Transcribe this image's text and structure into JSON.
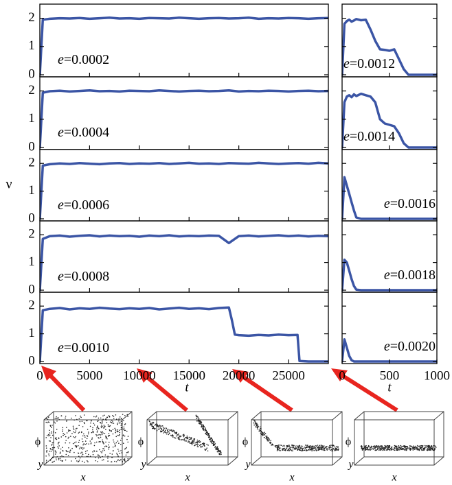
{
  "ylabel": "ν",
  "chart_data": [
    {
      "type": "line",
      "label_symbol": "e",
      "label_text": "=0.0002",
      "label_corner": "lower left",
      "color": "#3b55a5",
      "xlim": [
        0,
        29000
      ],
      "xticks": [
        0,
        5000,
        10000,
        15000,
        20000,
        25000
      ],
      "xtick_labels": false,
      "ylim": [
        0,
        2.5
      ],
      "yticks": [
        0,
        1,
        2
      ],
      "ytick_labels": true,
      "x": [
        0,
        300,
        1000,
        2000,
        3000,
        4000,
        5000,
        6000,
        7000,
        8000,
        9000,
        10000,
        11000,
        12000,
        13000,
        14000,
        15000,
        16000,
        17000,
        18000,
        19000,
        20000,
        21000,
        22000,
        23000,
        24000,
        25000,
        26000,
        27000,
        28000,
        29000
      ],
      "values": [
        0,
        1.95,
        1.98,
        2.0,
        1.99,
        2.01,
        1.98,
        2.0,
        2.02,
        1.99,
        2.0,
        1.98,
        2.01,
        2.0,
        1.99,
        2.02,
        2.0,
        1.98,
        2.0,
        2.01,
        1.99,
        2.0,
        2.02,
        1.98,
        2.0,
        1.99,
        2.01,
        2.0,
        1.98,
        2.0,
        2.01
      ]
    },
    {
      "type": "line",
      "label_symbol": "e",
      "label_text": "=0.0004",
      "label_corner": "lower left",
      "color": "#3b55a5",
      "xlim": [
        0,
        29000
      ],
      "xticks": [
        0,
        5000,
        10000,
        15000,
        20000,
        25000
      ],
      "xtick_labels": false,
      "ylim": [
        0,
        2.5
      ],
      "yticks": [
        0,
        1,
        2
      ],
      "ytick_labels": true,
      "x": [
        0,
        300,
        1000,
        2000,
        3000,
        4000,
        5000,
        6000,
        7000,
        8000,
        9000,
        10000,
        11000,
        12000,
        13000,
        14000,
        15000,
        16000,
        17000,
        18000,
        19000,
        20000,
        21000,
        22000,
        23000,
        24000,
        25000,
        26000,
        27000,
        28000,
        29000
      ],
      "values": [
        0,
        1.94,
        1.99,
        2.01,
        1.98,
        2.0,
        2.02,
        1.99,
        2.0,
        1.98,
        2.01,
        2.0,
        1.99,
        2.02,
        2.0,
        1.98,
        2.0,
        2.01,
        1.99,
        2.0,
        2.02,
        1.98,
        2.0,
        1.99,
        2.01,
        2.0,
        1.98,
        2.0,
        2.01,
        1.99,
        2.0
      ]
    },
    {
      "type": "line",
      "label_symbol": "e",
      "label_text": "=0.0006",
      "label_corner": "lower left",
      "color": "#3b55a5",
      "xlim": [
        0,
        29000
      ],
      "xticks": [
        0,
        5000,
        10000,
        15000,
        20000,
        25000
      ],
      "xtick_labels": false,
      "ylim": [
        0,
        2.5
      ],
      "yticks": [
        0,
        1,
        2
      ],
      "ytick_labels": true,
      "x": [
        0,
        300,
        1000,
        2000,
        3000,
        4000,
        5000,
        6000,
        7000,
        8000,
        9000,
        10000,
        11000,
        12000,
        13000,
        14000,
        15000,
        16000,
        17000,
        18000,
        19000,
        20000,
        21000,
        22000,
        23000,
        24000,
        25000,
        26000,
        27000,
        28000,
        29000
      ],
      "values": [
        0,
        1.92,
        1.97,
        2.0,
        1.98,
        2.01,
        1.99,
        1.97,
        2.0,
        2.01,
        1.98,
        2.0,
        1.99,
        2.01,
        1.98,
        2.0,
        2.02,
        1.99,
        2.0,
        1.98,
        2.01,
        2.0,
        1.99,
        2.02,
        2.0,
        1.98,
        2.0,
        2.01,
        1.99,
        2.02,
        2.0
      ]
    },
    {
      "type": "line",
      "label_symbol": "e",
      "label_text": "=0.0008",
      "label_corner": "lower left",
      "color": "#3b55a5",
      "xlim": [
        0,
        29000
      ],
      "xticks": [
        0,
        5000,
        10000,
        15000,
        20000,
        25000
      ],
      "xtick_labels": false,
      "ylim": [
        0,
        2.5
      ],
      "yticks": [
        0,
        1,
        2
      ],
      "ytick_labels": true,
      "x": [
        0,
        300,
        1000,
        2000,
        3000,
        4000,
        5000,
        6000,
        7000,
        8000,
        9000,
        10000,
        11000,
        12000,
        13000,
        14000,
        15000,
        16000,
        17000,
        18000,
        19000,
        20000,
        21000,
        22000,
        23000,
        24000,
        25000,
        26000,
        27000,
        28000,
        29000
      ],
      "values": [
        0,
        1.85,
        1.95,
        1.97,
        1.93,
        1.96,
        1.98,
        1.94,
        1.97,
        1.95,
        1.96,
        1.93,
        1.97,
        1.95,
        1.98,
        1.94,
        1.96,
        1.95,
        1.97,
        1.96,
        1.7,
        1.95,
        1.97,
        1.94,
        1.96,
        1.98,
        1.95,
        1.97,
        1.94,
        1.96,
        1.95
      ]
    },
    {
      "type": "line",
      "label_symbol": "e",
      "label_text": "=0.0010",
      "label_corner": "lower left",
      "color": "#3b55a5",
      "xlabel": "t",
      "xlim": [
        0,
        29000
      ],
      "xticks": [
        0,
        5000,
        10000,
        15000,
        20000,
        25000
      ],
      "xtick_labels": true,
      "ylim": [
        0,
        2.5
      ],
      "yticks": [
        0,
        1,
        2
      ],
      "ytick_labels": true,
      "x": [
        0,
        300,
        1000,
        2000,
        3000,
        4000,
        5000,
        6000,
        7000,
        8000,
        9000,
        10000,
        11000,
        12000,
        13000,
        14000,
        15000,
        16000,
        17000,
        18000,
        19000,
        19300,
        19600,
        20000,
        21000,
        22000,
        23000,
        24000,
        25000,
        25900,
        26100,
        27000,
        28000,
        29000
      ],
      "values": [
        0,
        1.85,
        1.9,
        1.93,
        1.88,
        1.92,
        1.9,
        1.94,
        1.91,
        1.89,
        1.92,
        1.9,
        1.93,
        1.88,
        1.91,
        1.94,
        1.9,
        1.92,
        1.89,
        1.93,
        1.95,
        1.5,
        0.97,
        0.95,
        0.93,
        0.96,
        0.94,
        0.97,
        0.95,
        0.96,
        0.02,
        0,
        0,
        0
      ]
    },
    {
      "type": "line",
      "label_symbol": "e",
      "label_text": "=0.0012",
      "label_corner": "lower left",
      "color": "#3b55a5",
      "xlim": [
        0,
        1000
      ],
      "xticks": [
        0,
        500,
        1000
      ],
      "xtick_labels": false,
      "ylim": [
        0,
        2.5
      ],
      "yticks": [
        0,
        1,
        2
      ],
      "ytick_labels": false,
      "x": [
        0,
        25,
        50,
        75,
        100,
        125,
        150,
        200,
        250,
        300,
        350,
        400,
        450,
        500,
        550,
        600,
        650,
        700,
        750,
        800,
        850,
        900,
        950,
        1000
      ],
      "values": [
        0,
        1.8,
        1.9,
        1.95,
        1.88,
        1.92,
        1.97,
        1.93,
        1.95,
        1.6,
        1.2,
        0.9,
        0.88,
        0.85,
        0.9,
        0.55,
        0.2,
        0,
        0,
        0,
        0,
        0,
        0,
        0
      ]
    },
    {
      "type": "line",
      "label_symbol": "e",
      "label_text": "=0.0014",
      "label_corner": "lower left",
      "color": "#3b55a5",
      "xlim": [
        0,
        1000
      ],
      "xticks": [
        0,
        500,
        1000
      ],
      "xtick_labels": false,
      "ylim": [
        0,
        2.5
      ],
      "yticks": [
        0,
        1,
        2
      ],
      "ytick_labels": false,
      "x": [
        0,
        25,
        50,
        75,
        100,
        125,
        150,
        200,
        250,
        300,
        350,
        400,
        450,
        500,
        550,
        600,
        650,
        700,
        750,
        800,
        850,
        900,
        950,
        1000
      ],
      "values": [
        0,
        1.6,
        1.8,
        1.85,
        1.78,
        1.88,
        1.82,
        1.9,
        1.85,
        1.8,
        1.6,
        1.0,
        0.85,
        0.8,
        0.75,
        0.5,
        0.15,
        0,
        0,
        0,
        0,
        0,
        0,
        0
      ]
    },
    {
      "type": "line",
      "label_symbol": "e",
      "label_text": "=0.0016",
      "label_corner": "lower right",
      "color": "#3b55a5",
      "xlim": [
        0,
        1000
      ],
      "xticks": [
        0,
        500,
        1000
      ],
      "xtick_labels": false,
      "ylim": [
        0,
        2.5
      ],
      "yticks": [
        0,
        1,
        2
      ],
      "ytick_labels": false,
      "x": [
        0,
        25,
        50,
        75,
        100,
        125,
        150,
        200,
        250,
        300,
        350,
        400,
        450,
        500,
        550,
        600,
        650,
        700,
        750,
        800,
        850,
        900,
        950,
        1000
      ],
      "values": [
        0,
        1.5,
        1.2,
        0.9,
        0.6,
        0.3,
        0.05,
        0,
        0,
        0,
        0,
        0,
        0,
        0,
        0,
        0,
        0,
        0,
        0,
        0,
        0,
        0,
        0,
        0
      ]
    },
    {
      "type": "line",
      "label_symbol": "e",
      "label_text": "=0.0018",
      "label_corner": "lower right",
      "color": "#3b55a5",
      "xlim": [
        0,
        1000
      ],
      "xticks": [
        0,
        500,
        1000
      ],
      "xtick_labels": false,
      "ylim": [
        0,
        2.5
      ],
      "yticks": [
        0,
        1,
        2
      ],
      "ytick_labels": false,
      "x": [
        0,
        25,
        50,
        75,
        100,
        125,
        150,
        200,
        250,
        300,
        350,
        400,
        450,
        500,
        550,
        600,
        650,
        700,
        750,
        800,
        850,
        900,
        950,
        1000
      ],
      "values": [
        0,
        1.1,
        1.0,
        0.7,
        0.4,
        0.15,
        0.02,
        0,
        0,
        0,
        0,
        0,
        0,
        0,
        0,
        0,
        0,
        0,
        0,
        0,
        0,
        0,
        0,
        0
      ]
    },
    {
      "type": "line",
      "label_symbol": "e",
      "label_text": "=0.0020",
      "label_corner": "lower right",
      "color": "#3b55a5",
      "xlabel": "t",
      "xlim": [
        0,
        1000
      ],
      "xticks": [
        0,
        500,
        1000
      ],
      "xtick_labels": true,
      "ylim": [
        0,
        2.5
      ],
      "yticks": [
        0,
        1,
        2
      ],
      "ytick_labels": false,
      "x": [
        0,
        25,
        50,
        75,
        100,
        125,
        150,
        200,
        250,
        300,
        350,
        400,
        450,
        500,
        550,
        600,
        650,
        700,
        750,
        800,
        850,
        900,
        950,
        1000
      ],
      "values": [
        0,
        0.8,
        0.5,
        0.2,
        0.05,
        0,
        0,
        0,
        0,
        0,
        0,
        0,
        0,
        0,
        0,
        0,
        0,
        0,
        0,
        0,
        0,
        0,
        0,
        0
      ]
    }
  ],
  "insets": [
    {
      "z_label": "ϕ",
      "y_label": "y",
      "x_label": "x"
    },
    {
      "z_label": "ϕ",
      "y_label": "y",
      "x_label": "x"
    },
    {
      "z_label": "ϕ",
      "y_label": "y",
      "x_label": "x"
    },
    {
      "z_label": "ϕ",
      "y_label": "y",
      "x_label": "x"
    }
  ]
}
